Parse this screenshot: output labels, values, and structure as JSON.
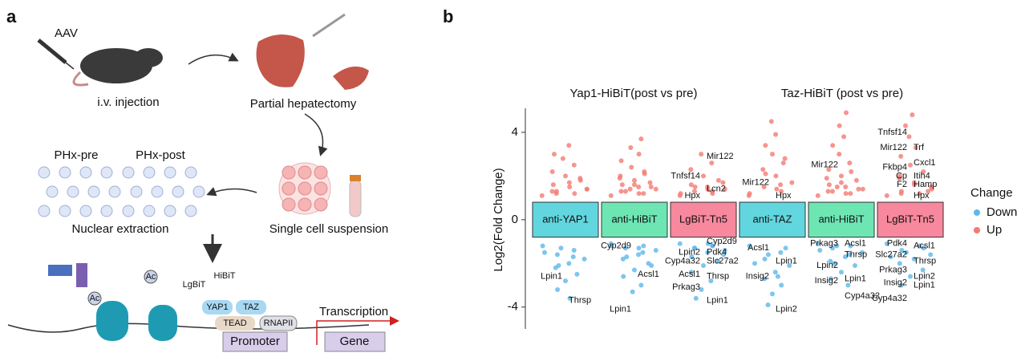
{
  "panel_a": {
    "letter": "a",
    "aav": "AAV",
    "injection": "i.v. injection",
    "hepatectomy": "Partial hepatectomy",
    "pre": "PHx-pre",
    "post": "PHx-post",
    "suspension": "Single cell suspension",
    "extraction": "Nuclear extraction",
    "lgbit": "LgBiT",
    "hibit": "HiBiT",
    "ac1": "Ac",
    "ac2": "Ac",
    "yap1": "YAP1",
    "taz": "TAZ",
    "tead": "TEAD",
    "rnapii": "RNAPII",
    "promoter": "Promoter",
    "transcription": "Transcription",
    "gene": "Gene"
  },
  "chart_data": {
    "type": "beeswarm",
    "letter": "b",
    "ylabel": "Log2(Fold Change)",
    "ylim": [
      -5,
      5.1
    ],
    "yticks": [
      -4,
      0,
      4
    ],
    "subtitles": [
      "Yap1-HiBiT(post vs pre)",
      "Taz-HiBiT (post vs pre)"
    ],
    "legend_title": "Change",
    "series": [
      {
        "name": "Down",
        "color": "#5cb8ea"
      },
      {
        "name": "Up",
        "color": "#f27b73"
      }
    ],
    "groups": [
      {
        "label": "anti-YAP1",
        "box_color": "#62d6df",
        "up": [
          1.1,
          1.2,
          1.3,
          1.4,
          1.5,
          1.6,
          1.8,
          2.0,
          2.2,
          2.5,
          2.8,
          3.0,
          3.4,
          1.2,
          1.4,
          1.7,
          1.3,
          1.9
        ],
        "down": [
          -1.2,
          -1.4,
          -1.6,
          -1.8,
          -2.0,
          -2.2,
          -2.5,
          -2.8,
          -3.2,
          -3.6,
          -1.3,
          -1.5,
          -1.7,
          -2.1
        ]
      },
      {
        "label": "anti-HiBiT",
        "box_color": "#6ee6b4",
        "up": [
          1.1,
          1.2,
          1.3,
          1.4,
          1.5,
          1.6,
          1.7,
          1.8,
          2.0,
          2.2,
          2.4,
          2.7,
          3.0,
          3.3,
          3.7,
          1.2,
          1.3,
          1.5,
          1.6,
          1.9,
          2.1,
          1.4
        ],
        "down": [
          -1.1,
          -1.2,
          -1.3,
          -1.4,
          -1.6,
          -1.8,
          -2.0,
          -2.3,
          -2.6,
          -3.0,
          -3.3,
          -1.2,
          -1.5,
          -1.7,
          -2.1,
          -1.3
        ]
      },
      {
        "label": "LgBiT-Tn5",
        "box_color": "#f7889e",
        "up": [
          1.1,
          1.2,
          1.3,
          1.4,
          1.5,
          1.6,
          1.8,
          2.0,
          2.3,
          2.6,
          3.0,
          1.2,
          1.3,
          1.5,
          1.7,
          1.4
        ],
        "down": [
          -1.1,
          -1.2,
          -1.3,
          -1.4,
          -1.5,
          -1.7,
          -1.9,
          -2.1,
          -2.4,
          -2.8,
          -3.2,
          -3.6,
          -1.2,
          -1.3,
          -1.6,
          -1.1
        ]
      },
      {
        "label": "anti-TAZ",
        "box_color": "#62d6df",
        "up": [
          1.1,
          1.3,
          1.5,
          1.7,
          2.0,
          2.3,
          2.6,
          3.0,
          3.4,
          3.9,
          4.5,
          1.2,
          1.6,
          2.1,
          2.8,
          1.4
        ],
        "down": [
          -1.2,
          -1.5,
          -1.8,
          -2.1,
          -2.4,
          -2.7,
          -3.0,
          -3.4,
          -3.9,
          -1.3,
          -1.6,
          -2.0,
          -2.6
        ]
      },
      {
        "label": "anti-HiBiT",
        "box_color": "#6ee6b4",
        "up": [
          1.1,
          1.2,
          1.3,
          1.4,
          1.5,
          1.6,
          1.8,
          2.0,
          2.3,
          2.6,
          3.0,
          3.4,
          3.8,
          4.3,
          4.9,
          1.2,
          1.3,
          1.4,
          1.7,
          1.9,
          2.2,
          1.5
        ],
        "down": [
          -1.1,
          -1.2,
          -1.3,
          -1.5,
          -1.7,
          -1.9,
          -2.1,
          -2.4,
          -2.7,
          -3.0,
          -1.2,
          -1.4,
          -1.6,
          -2.0
        ]
      },
      {
        "label": "LgBiT-Tn5",
        "box_color": "#f7889e",
        "up": [
          1.1,
          1.2,
          1.3,
          1.5,
          1.7,
          1.9,
          2.2,
          2.5,
          2.9,
          3.3,
          3.8,
          4.3,
          4.8,
          1.2,
          1.4,
          1.6,
          2.0,
          1.3
        ],
        "down": [
          -1.1,
          -1.2,
          -1.4,
          -1.6,
          -1.8,
          -2.0,
          -2.3,
          -2.6,
          -3.0,
          -1.3,
          -1.5,
          -1.7
        ]
      }
    ],
    "annotations": [
      {
        "text": "Lpin1",
        "group": 0,
        "y": -2.6
      },
      {
        "text": "Thrsp",
        "group": 0,
        "y": -3.7
      },
      {
        "text": "Cyp2d9",
        "group": 1,
        "y": -1.2
      },
      {
        "text": "Acsl1",
        "group": 1,
        "y": -2.5
      },
      {
        "text": "Lpin1",
        "group": 1,
        "y": -4.1
      },
      {
        "text": "Mir122",
        "group": 2,
        "y": 2.9
      },
      {
        "text": "Tnfsf14",
        "group": 2,
        "y": 2.0
      },
      {
        "text": "Lcn2",
        "group": 2,
        "y": 1.4
      },
      {
        "text": "Hpx",
        "group": 2,
        "y": 1.1
      },
      {
        "text": "Cyp2d9",
        "group": 2,
        "y": -1.0
      },
      {
        "text": "Lpin2",
        "group": 2,
        "y": -1.5
      },
      {
        "text": "Pdk4",
        "group": 2,
        "y": -1.5
      },
      {
        "text": "Cyp4a32",
        "group": 2,
        "y": -1.9
      },
      {
        "text": "Slc27a2",
        "group": 2,
        "y": -1.9
      },
      {
        "text": "Acsl1",
        "group": 2,
        "y": -2.5
      },
      {
        "text": "Thrsp",
        "group": 2,
        "y": -2.6
      },
      {
        "text": "Prkag3",
        "group": 2,
        "y": -3.1
      },
      {
        "text": "Lpin1",
        "group": 2,
        "y": -3.7
      },
      {
        "text": "Mir122",
        "group": 3,
        "y": 1.7
      },
      {
        "text": "Hpx",
        "group": 3,
        "y": 1.1
      },
      {
        "text": "Acsl1",
        "group": 3,
        "y": -1.3
      },
      {
        "text": "Lpin1",
        "group": 3,
        "y": -1.9
      },
      {
        "text": "Insig2",
        "group": 3,
        "y": -2.6
      },
      {
        "text": "Lpin2",
        "group": 3,
        "y": -4.1
      },
      {
        "text": "Mir122",
        "group": 4,
        "y": 2.5
      },
      {
        "text": "Acsl1",
        "group": 4,
        "y": -1.1
      },
      {
        "text": "Prkag3",
        "group": 4,
        "y": -1.1
      },
      {
        "text": "Thrsp",
        "group": 4,
        "y": -1.6
      },
      {
        "text": "Lpin2",
        "group": 4,
        "y": -2.1
      },
      {
        "text": "Lpin1",
        "group": 4,
        "y": -2.7
      },
      {
        "text": "Insig2",
        "group": 4,
        "y": -2.8
      },
      {
        "text": "Cyp4a32",
        "group": 4,
        "y": -3.5
      },
      {
        "text": "Tnfsf14",
        "group": 5,
        "y": 4.0
      },
      {
        "text": "Trf",
        "group": 5,
        "y": 3.3
      },
      {
        "text": "Mir122",
        "group": 5,
        "y": 3.3
      },
      {
        "text": "Cxcl1",
        "group": 5,
        "y": 2.6
      },
      {
        "text": "Fkbp4",
        "group": 5,
        "y": 2.4
      },
      {
        "text": "Itih4",
        "group": 5,
        "y": 2.0
      },
      {
        "text": "Cp",
        "group": 5,
        "y": 2.0
      },
      {
        "text": "Hamp",
        "group": 5,
        "y": 1.6
      },
      {
        "text": "F2",
        "group": 5,
        "y": 1.6
      },
      {
        "text": "Hpx",
        "group": 5,
        "y": 1.1
      },
      {
        "text": "Pdk4",
        "group": 5,
        "y": -1.1
      },
      {
        "text": "Acsl1",
        "group": 5,
        "y": -1.2
      },
      {
        "text": "Slc27a2",
        "group": 5,
        "y": -1.6
      },
      {
        "text": "Thrsp",
        "group": 5,
        "y": -1.9
      },
      {
        "text": "Prkag3",
        "group": 5,
        "y": -2.3
      },
      {
        "text": "Lpin2",
        "group": 5,
        "y": -2.6
      },
      {
        "text": "Insig2",
        "group": 5,
        "y": -2.9
      },
      {
        "text": "Lpin1",
        "group": 5,
        "y": -3.0
      },
      {
        "text": "Cyp4a32",
        "group": 5,
        "y": -3.6
      }
    ]
  }
}
